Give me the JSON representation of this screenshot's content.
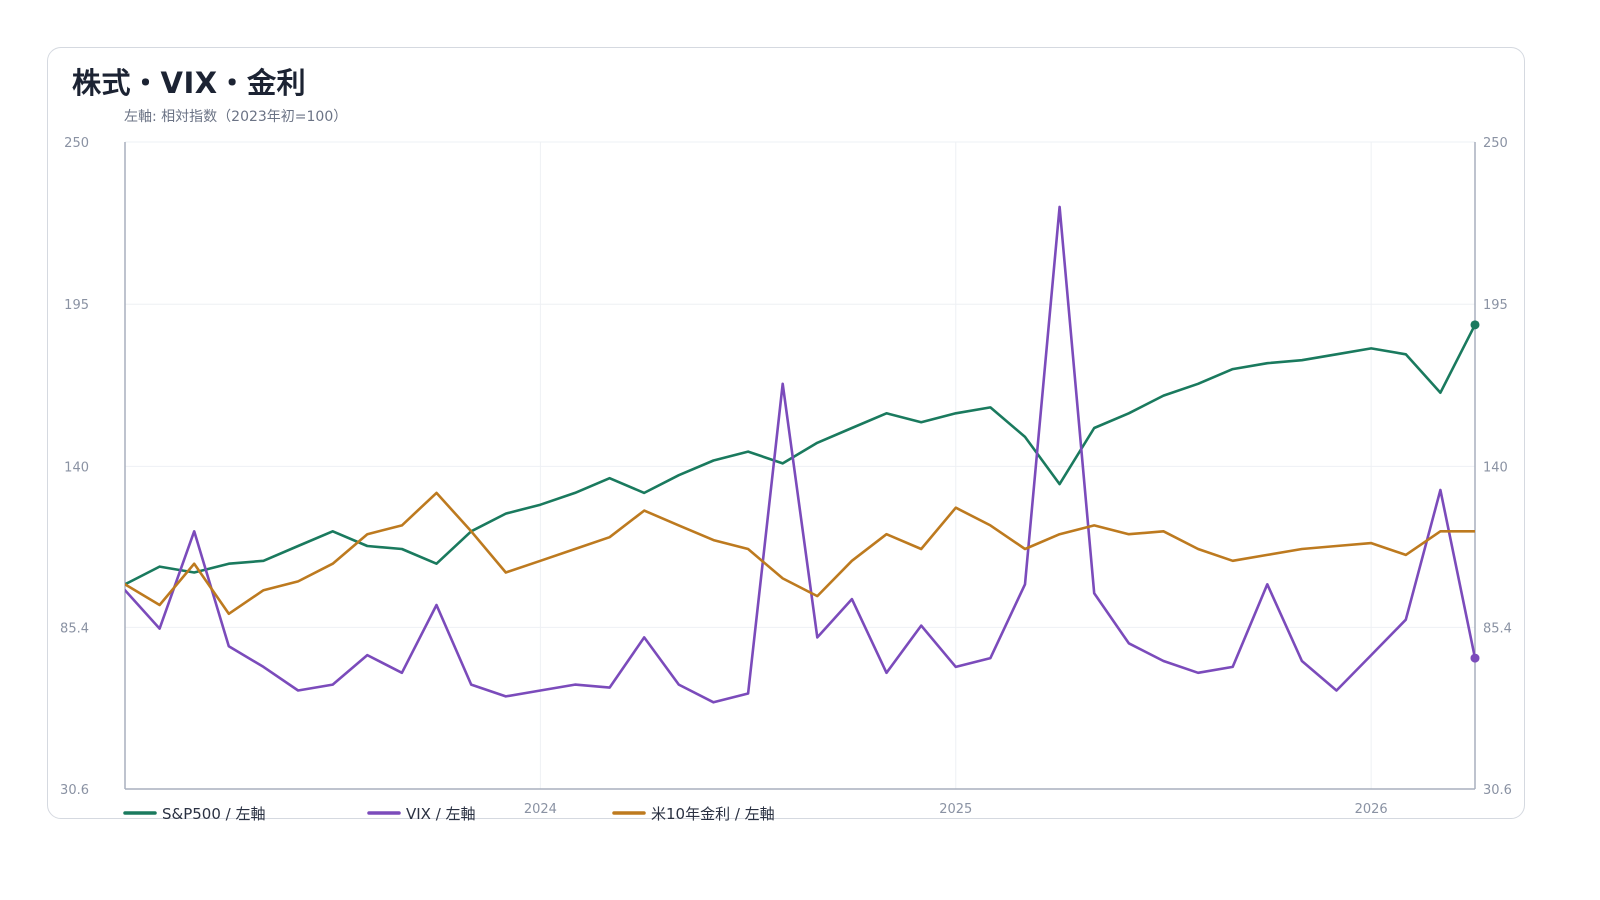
{
  "chart_data": {
    "type": "line",
    "title": "株式・VIX・金利",
    "subtitle": "左軸: 相対指数（2023年初=100）",
    "y_axis": {
      "ylim": [
        30.6,
        250
      ],
      "left_ticks": [
        "250",
        "195",
        "140",
        "85.4",
        "30.6"
      ],
      "right_ticks": [
        "250",
        "195",
        "140",
        "85.4",
        "30.6"
      ]
    },
    "x_axis": {
      "xlim": [
        "2023-01",
        "2026-04"
      ],
      "ticks": [
        {
          "label": "2024",
          "date": "2024-01"
        },
        {
          "label": "2025",
          "date": "2025-01"
        },
        {
          "label": "2026",
          "date": "2026-01"
        }
      ]
    },
    "grid": true,
    "legend_position": "bottom-left",
    "series": [
      {
        "name": "S&P500 / 左軸",
        "color": "#1a7a5e",
        "end_marker": true,
        "points": [
          [
            "2023-01",
            100
          ],
          [
            "2023-02",
            106
          ],
          [
            "2023-03",
            104
          ],
          [
            "2023-04",
            107
          ],
          [
            "2023-05",
            108
          ],
          [
            "2023-06",
            113
          ],
          [
            "2023-07",
            118
          ],
          [
            "2023-08",
            113
          ],
          [
            "2023-09",
            112
          ],
          [
            "2023-10",
            107
          ],
          [
            "2023-11",
            118
          ],
          [
            "2023-12",
            124
          ],
          [
            "2024-01",
            127
          ],
          [
            "2024-02",
            131
          ],
          [
            "2024-03",
            136
          ],
          [
            "2024-04",
            131
          ],
          [
            "2024-05",
            137
          ],
          [
            "2024-06",
            142
          ],
          [
            "2024-07",
            145
          ],
          [
            "2024-08",
            141
          ],
          [
            "2024-09",
            148
          ],
          [
            "2024-10",
            153
          ],
          [
            "2024-11",
            158
          ],
          [
            "2024-12",
            155
          ],
          [
            "2025-01",
            158
          ],
          [
            "2025-02",
            160
          ],
          [
            "2025-03",
            150
          ],
          [
            "2025-04",
            134
          ],
          [
            "2025-05",
            153
          ],
          [
            "2025-06",
            158
          ],
          [
            "2025-07",
            164
          ],
          [
            "2025-08",
            168
          ],
          [
            "2025-09",
            173
          ],
          [
            "2025-10",
            175
          ],
          [
            "2025-11",
            176
          ],
          [
            "2025-12",
            178
          ],
          [
            "2026-01",
            180
          ],
          [
            "2026-02",
            178
          ],
          [
            "2026-03",
            165
          ],
          [
            "2026-04",
            188
          ]
        ]
      },
      {
        "name": "VIX / 左軸",
        "color": "#7b4bbb",
        "end_marker": true,
        "points": [
          [
            "2023-01",
            98
          ],
          [
            "2023-02",
            85
          ],
          [
            "2023-03",
            118
          ],
          [
            "2023-04",
            79
          ],
          [
            "2023-05",
            72
          ],
          [
            "2023-06",
            64
          ],
          [
            "2023-07",
            66
          ],
          [
            "2023-08",
            76
          ],
          [
            "2023-09",
            70
          ],
          [
            "2023-10",
            93
          ],
          [
            "2023-11",
            66
          ],
          [
            "2023-12",
            62
          ],
          [
            "2024-01",
            64
          ],
          [
            "2024-02",
            66
          ],
          [
            "2024-03",
            65
          ],
          [
            "2024-04",
            82
          ],
          [
            "2024-05",
            66
          ],
          [
            "2024-06",
            60
          ],
          [
            "2024-07",
            63
          ],
          [
            "2024-08",
            168
          ],
          [
            "2024-09",
            82
          ],
          [
            "2024-10",
            95
          ],
          [
            "2024-11",
            70
          ],
          [
            "2024-12",
            86
          ],
          [
            "2025-01",
            72
          ],
          [
            "2025-02",
            75
          ],
          [
            "2025-03",
            100
          ],
          [
            "2025-04",
            228
          ],
          [
            "2025-05",
            97
          ],
          [
            "2025-06",
            80
          ],
          [
            "2025-07",
            74
          ],
          [
            "2025-08",
            70
          ],
          [
            "2025-09",
            72
          ],
          [
            "2025-10",
            100
          ],
          [
            "2025-11",
            74
          ],
          [
            "2025-12",
            64
          ],
          [
            "2026-01",
            76
          ],
          [
            "2026-02",
            88
          ],
          [
            "2026-03",
            132
          ],
          [
            "2026-04",
            75
          ]
        ]
      },
      {
        "name": "米10年金利 / 左軸",
        "color": "#bd7a1f",
        "end_marker": false,
        "points": [
          [
            "2023-01",
            100
          ],
          [
            "2023-02",
            93
          ],
          [
            "2023-03",
            107
          ],
          [
            "2023-04",
            90
          ],
          [
            "2023-05",
            98
          ],
          [
            "2023-06",
            101
          ],
          [
            "2023-07",
            107
          ],
          [
            "2023-08",
            117
          ],
          [
            "2023-09",
            120
          ],
          [
            "2023-10",
            131
          ],
          [
            "2023-11",
            118
          ],
          [
            "2023-12",
            104
          ],
          [
            "2024-01",
            108
          ],
          [
            "2024-02",
            112
          ],
          [
            "2024-03",
            116
          ],
          [
            "2024-04",
            125
          ],
          [
            "2024-05",
            120
          ],
          [
            "2024-06",
            115
          ],
          [
            "2024-07",
            112
          ],
          [
            "2024-08",
            102
          ],
          [
            "2024-09",
            96
          ],
          [
            "2024-10",
            108
          ],
          [
            "2024-11",
            117
          ],
          [
            "2024-12",
            112
          ],
          [
            "2025-01",
            126
          ],
          [
            "2025-02",
            120
          ],
          [
            "2025-03",
            112
          ],
          [
            "2025-04",
            117
          ],
          [
            "2025-05",
            120
          ],
          [
            "2025-06",
            117
          ],
          [
            "2025-07",
            118
          ],
          [
            "2025-08",
            112
          ],
          [
            "2025-09",
            108
          ],
          [
            "2025-10",
            110
          ],
          [
            "2025-11",
            112
          ],
          [
            "2025-12",
            113
          ],
          [
            "2026-01",
            114
          ],
          [
            "2026-02",
            110
          ],
          [
            "2026-03",
            118
          ],
          [
            "2026-04",
            118
          ]
        ]
      }
    ]
  }
}
